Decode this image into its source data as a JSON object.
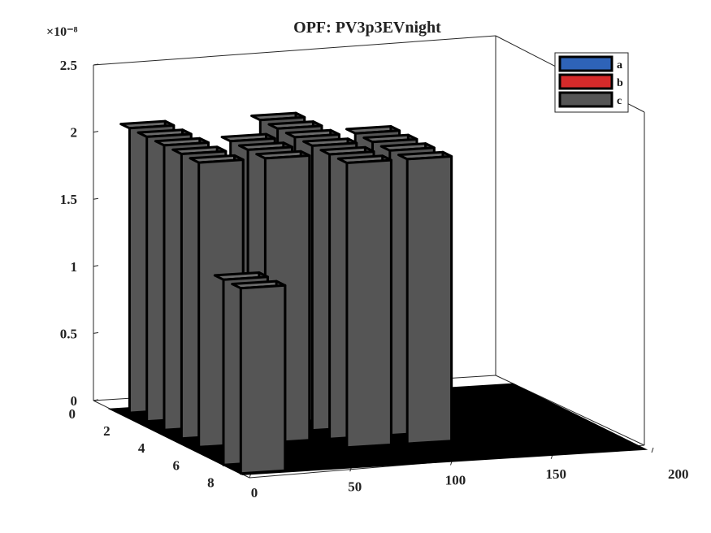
{
  "chart_data": {
    "type": "bar3d",
    "title": "OPF: PV3p3EVnight",
    "z_exponent_label": "×10⁻⁸",
    "xlabel": "",
    "ylabel": "",
    "zlabel": "",
    "x_ticks": [
      "0",
      "50",
      "100",
      "150",
      "200"
    ],
    "y_ticks": [
      "0",
      "2",
      "4",
      "6",
      "8"
    ],
    "z_ticks": [
      "0",
      "0.5",
      "1",
      "1.5",
      "2",
      "2.5"
    ],
    "xlim": [
      0,
      200
    ],
    "ylim": [
      0,
      9
    ],
    "zlim": [
      0,
      2.5
    ],
    "z_scale_note": "",
    "legend": {
      "placement": "top-right",
      "entries": [
        {
          "label": "a",
          "color": "#2e63b8"
        },
        {
          "label": "b",
          "color": "#d62a2a"
        },
        {
          "label": "c",
          "color": "#555555"
        }
      ]
    },
    "series": [
      {
        "name": "c",
        "color": "#555555",
        "points": [
          {
            "x": 0,
            "y": 8.0,
            "z": 1.38
          },
          {
            "x": 0,
            "y": 7.0,
            "z": 1.38
          },
          {
            "x": 5,
            "y": 5.0,
            "z": 2.12
          },
          {
            "x": 5,
            "y": 4.0,
            "z": 2.12
          },
          {
            "x": 5,
            "y": 3.0,
            "z": 2.12
          },
          {
            "x": 5,
            "y": 2.0,
            "z": 2.12
          },
          {
            "x": 5,
            "y": 1.0,
            "z": 2.12
          },
          {
            "x": 38,
            "y": 5.0,
            "z": 2.12
          },
          {
            "x": 38,
            "y": 4.0,
            "z": 2.12
          },
          {
            "x": 38,
            "y": 3.0,
            "z": 2.12
          },
          {
            "x": 70,
            "y": 6.0,
            "z": 2.12
          },
          {
            "x": 70,
            "y": 5.0,
            "z": 2.12
          },
          {
            "x": 70,
            "y": 4.0,
            "z": 2.12
          },
          {
            "x": 70,
            "y": 3.0,
            "z": 2.12
          },
          {
            "x": 70,
            "y": 2.0,
            "z": 2.12
          },
          {
            "x": 70,
            "y": 1.0,
            "z": 2.12
          },
          {
            "x": 100,
            "y": 6.0,
            "z": 2.12
          },
          {
            "x": 100,
            "y": 5.0,
            "z": 2.12
          },
          {
            "x": 100,
            "y": 4.0,
            "z": 2.12
          },
          {
            "x": 100,
            "y": 3.0,
            "z": 2.12
          }
        ]
      }
    ]
  }
}
